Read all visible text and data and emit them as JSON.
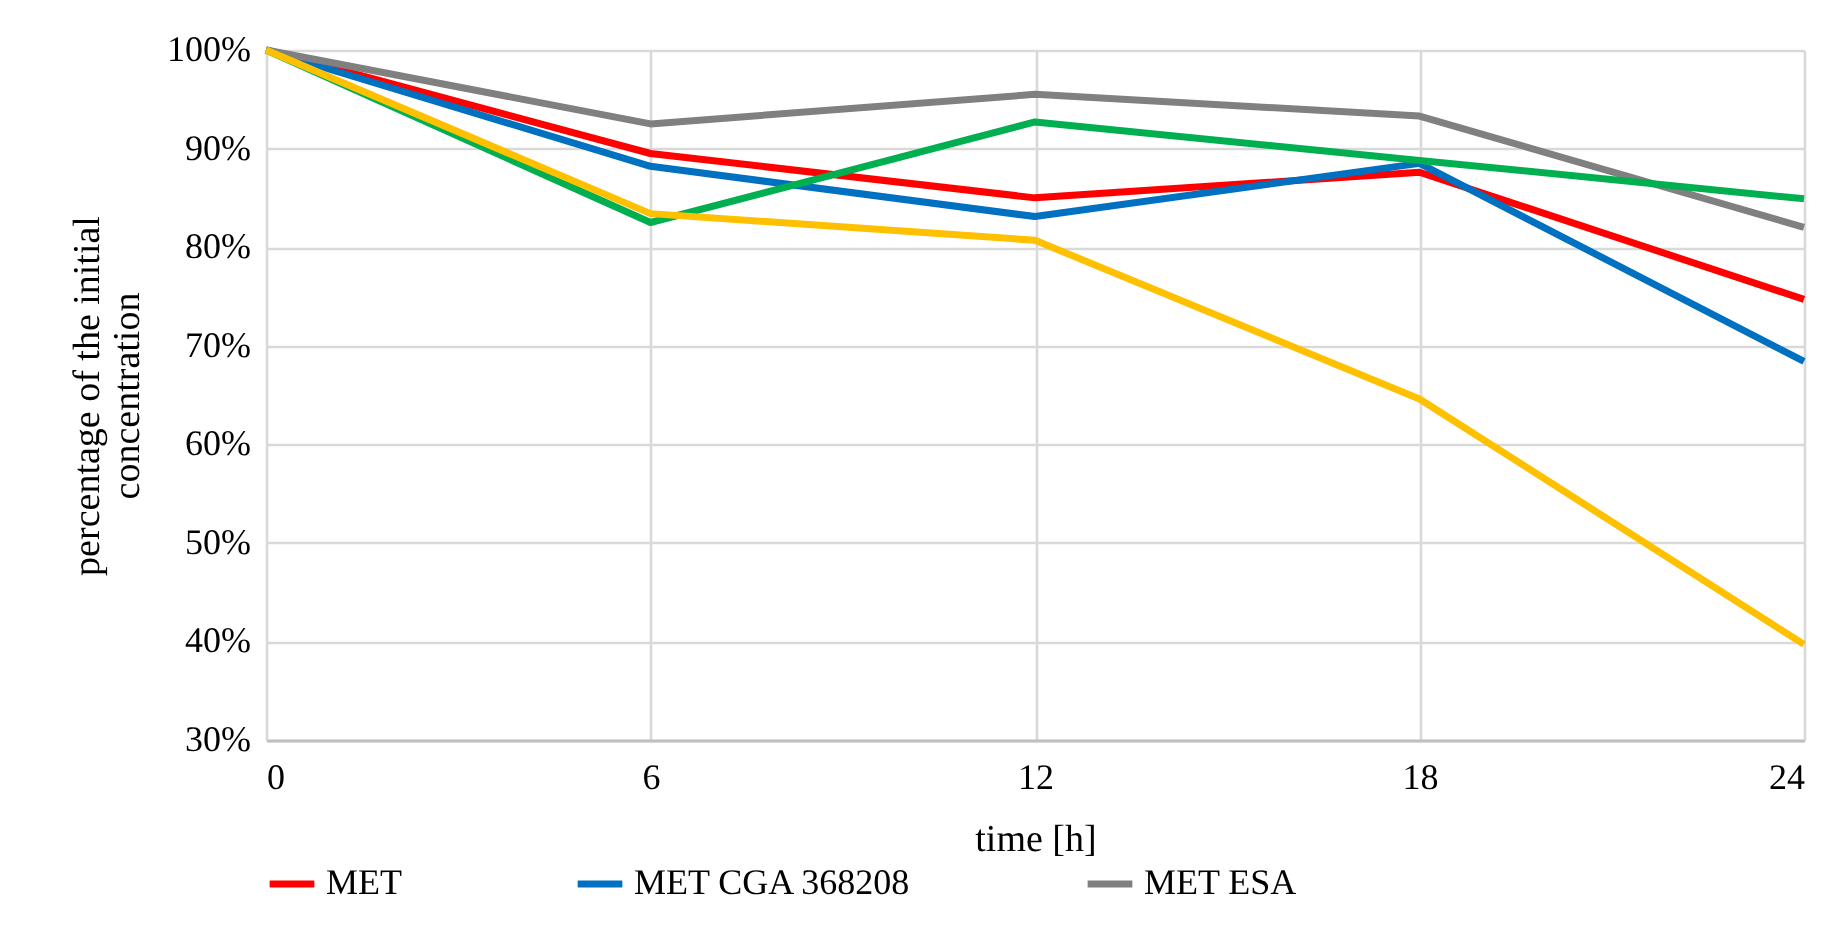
{
  "chart_data": {
    "type": "line",
    "xlabel": "time [h]",
    "ylabel": "percentage of the initial concentration",
    "x": [
      0,
      6,
      12,
      18,
      24
    ],
    "series": [
      {
        "name": "MET",
        "color": "#ff0000",
        "values": [
          100,
          89.5,
          85.0,
          87.6,
          74.7
        ]
      },
      {
        "name": "MET CGA 368208",
        "color": "#0070c0",
        "values": [
          100,
          88.2,
          83.1,
          88.5,
          68.4
        ]
      },
      {
        "name": "MET ESA",
        "color": "#808080",
        "values": [
          100,
          92.5,
          95.5,
          93.3,
          82.0
        ]
      },
      {
        "color": "#00b050",
        "values": [
          100,
          82.5,
          92.7,
          88.8,
          84.9
        ]
      },
      {
        "color": "#ffc000",
        "values": [
          100,
          83.4,
          80.7,
          64.6,
          39.7
        ]
      }
    ],
    "xlim": [
      0,
      24
    ],
    "xticks": [
      0,
      6,
      12,
      18,
      24
    ],
    "ylim": [
      30,
      100
    ],
    "yticks": [
      {
        "value": 30,
        "label": "30%"
      },
      {
        "value": 40,
        "label": "40%"
      },
      {
        "value": 50,
        "label": "50%"
      },
      {
        "value": 60,
        "label": "60%"
      },
      {
        "value": 70,
        "label": "70%"
      },
      {
        "value": 80,
        "label": "80%"
      },
      {
        "value": 90,
        "label": "90%"
      },
      {
        "value": 100,
        "label": "100%"
      }
    ],
    "grid": true,
    "legend": "bottom",
    "marker": "none",
    "line_style": "solid"
  }
}
